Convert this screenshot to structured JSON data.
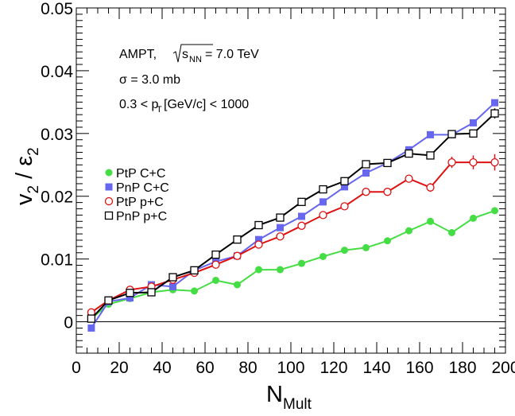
{
  "chart_data": {
    "type": "line",
    "xlabel": {
      "main": "N",
      "sub": "Mult"
    },
    "ylabel": {
      "v": "v",
      "v_sub": "2",
      "sep": " / ",
      "eps": "ε",
      "eps_sub": "2"
    },
    "xlim": [
      0,
      200
    ],
    "ylim": [
      -0.005,
      0.05
    ],
    "x_ticks": [
      0,
      20,
      40,
      60,
      80,
      100,
      120,
      140,
      160,
      180,
      200
    ],
    "y_ticks": [
      0,
      0.01,
      0.02,
      0.03,
      0.04,
      0.05
    ],
    "y_tick_labels": [
      "0",
      "0.01",
      "0.02",
      "0.03",
      "0.04",
      "0.05"
    ],
    "zero_line": 0,
    "grid": false,
    "legend_position": "middle-left",
    "annotations": {
      "line1_prefix": "AMPT, ",
      "line1_sqrt_sub": "NN",
      "line1_sqrt_s": "s",
      "line1_suffix": " = 7.0 TeV",
      "line2": "σ = 3.0 mb",
      "line3_prefix": "0.3 < p",
      "line3_sub": "T",
      "line3_suffix": " [GeV/c] < 1000"
    },
    "series": [
      {
        "name": "PtP C+C",
        "color": "#44dd44",
        "marker": "filled-circle",
        "x": [
          7,
          15,
          25,
          35,
          45,
          55,
          65,
          75,
          85,
          95,
          105,
          115,
          125,
          135,
          145,
          155,
          165,
          175,
          185,
          195
        ],
        "y": [
          0.0005,
          0.0028,
          0.0037,
          0.0047,
          0.0051,
          0.0049,
          0.0066,
          0.0059,
          0.0083,
          0.0083,
          0.0093,
          0.0104,
          0.0114,
          0.0118,
          0.0129,
          0.0145,
          0.016,
          0.0142,
          0.0165,
          0.0177
        ],
        "err": [
          0.0002,
          0.0002,
          0.0002,
          0.0002,
          0.0002,
          0.0002,
          0.0002,
          0.0002,
          0.0002,
          0.0002,
          0.0002,
          0.0002,
          0.0002,
          0.0002,
          0.0002,
          0.0003,
          0.0003,
          0.0003,
          0.0003,
          0.0004
        ]
      },
      {
        "name": "PnP C+C",
        "color": "#6666ee",
        "marker": "filled-square",
        "x": [
          7,
          15,
          25,
          35,
          45,
          55,
          65,
          75,
          85,
          95,
          105,
          115,
          125,
          135,
          145,
          155,
          165,
          175,
          185,
          195
        ],
        "y": [
          -0.001,
          0.0032,
          0.0038,
          0.0059,
          0.0056,
          0.0082,
          0.0096,
          0.0105,
          0.0131,
          0.015,
          0.0168,
          0.0191,
          0.0215,
          0.0237,
          0.0253,
          0.0274,
          0.0298,
          0.0298,
          0.0317,
          0.0349
        ],
        "err": [
          0.0002,
          0.0002,
          0.0002,
          0.0002,
          0.0002,
          0.0002,
          0.0002,
          0.0002,
          0.0002,
          0.0002,
          0.0002,
          0.0002,
          0.0002,
          0.0002,
          0.0002,
          0.0003,
          0.0003,
          0.0003,
          0.0003,
          0.0004
        ]
      },
      {
        "name": "PtP p+C",
        "color": "#dd1111",
        "marker": "open-circle",
        "x": [
          7,
          15,
          25,
          35,
          45,
          55,
          65,
          75,
          85,
          95,
          105,
          115,
          125,
          135,
          145,
          155,
          165,
          175,
          185,
          195
        ],
        "y": [
          0.0015,
          0.0034,
          0.0051,
          0.0056,
          0.0067,
          0.0078,
          0.0091,
          0.0105,
          0.0123,
          0.0136,
          0.0153,
          0.017,
          0.0184,
          0.0207,
          0.0207,
          0.0228,
          0.0214,
          0.0254,
          0.0254,
          0.0254
        ],
        "err": [
          0.0002,
          0.0002,
          0.0002,
          0.0002,
          0.0002,
          0.0002,
          0.0002,
          0.0002,
          0.0002,
          0.0003,
          0.0003,
          0.0003,
          0.0004,
          0.0004,
          0.0005,
          0.0006,
          0.0007,
          0.0009,
          0.0011,
          0.0013
        ]
      },
      {
        "name": "PnP p+C",
        "color": "#000000",
        "marker": "open-square",
        "x": [
          7,
          15,
          25,
          35,
          45,
          55,
          65,
          75,
          85,
          95,
          105,
          115,
          125,
          135,
          145,
          155,
          165,
          175,
          185,
          195
        ],
        "y": [
          0.0005,
          0.0034,
          0.0046,
          0.0047,
          0.0071,
          0.0082,
          0.0107,
          0.0131,
          0.0154,
          0.0166,
          0.0191,
          0.0211,
          0.0224,
          0.0251,
          0.0253,
          0.0268,
          0.0265,
          0.0299,
          0.03,
          0.0332
        ],
        "err": [
          0.0002,
          0.0002,
          0.0002,
          0.0002,
          0.0002,
          0.0002,
          0.0002,
          0.0002,
          0.0002,
          0.0002,
          0.0002,
          0.0002,
          0.0002,
          0.0003,
          0.0003,
          0.0003,
          0.0004,
          0.0005,
          0.0006,
          0.0008
        ]
      }
    ]
  }
}
